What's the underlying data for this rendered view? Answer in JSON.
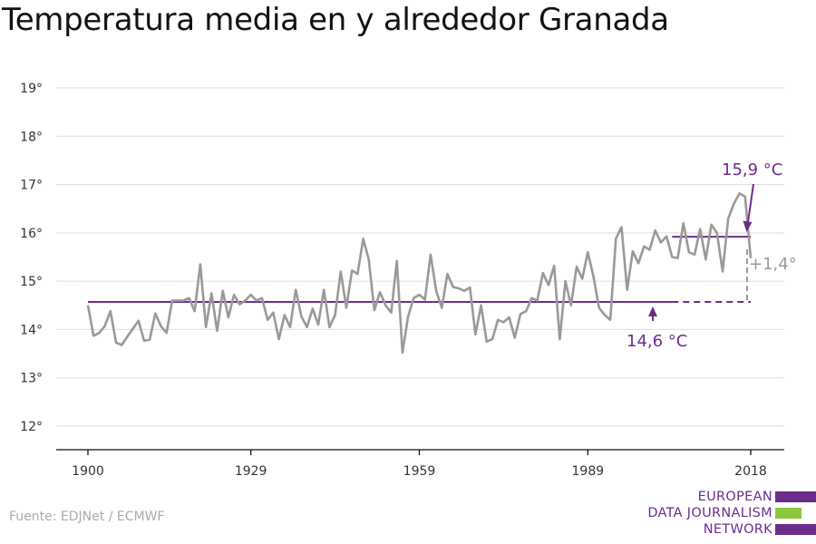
{
  "title": "Temperatura media en y alrededor Granada",
  "source": "Fuente: EDJNet / ECMWF",
  "logo": {
    "lines": [
      "EUROPEAN",
      "DATA JOURNALISM",
      "NETWORK"
    ],
    "colors": [
      "#6b2d8c",
      "#8dc63f",
      "#6b2d8c"
    ]
  },
  "colors": {
    "series": "#999999",
    "baseline": "#6b2d8c",
    "text": "#333333",
    "grid": "#dddddd"
  },
  "chart_data": {
    "type": "line",
    "title": "Temperatura media en y alrededor Granada",
    "xlabel": "",
    "ylabel": "",
    "xlim": [
      1900,
      2020
    ],
    "ylim": [
      11.5,
      19.5
    ],
    "x_ticks": [
      1900,
      1929,
      1959,
      1989,
      2018
    ],
    "y_ticks": [
      12,
      13,
      14,
      15,
      16,
      17,
      18,
      19
    ],
    "y_tick_suffix": "°",
    "grid": "horizontal",
    "series": [
      {
        "start_year": 1900,
        "values": [
          14.5,
          13.87,
          13.93,
          14.07,
          14.38,
          13.73,
          13.68,
          13.85,
          14.02,
          14.18,
          13.77,
          13.79,
          14.33,
          14.07,
          13.93,
          14.6,
          14.6,
          14.6,
          14.65,
          14.38,
          15.35,
          14.05,
          14.75,
          13.97,
          14.8,
          14.25,
          14.72,
          14.52,
          14.6,
          14.72,
          14.6,
          14.65,
          14.2,
          14.35,
          13.8,
          14.3,
          14.05,
          14.82,
          14.27,
          14.05,
          14.43,
          14.1,
          14.82,
          14.05,
          14.3,
          15.2,
          14.45,
          15.22,
          15.15,
          15.88,
          15.45,
          14.4,
          14.77,
          14.5,
          14.35,
          15.42,
          13.52,
          14.27,
          14.65,
          14.72,
          14.62,
          15.55,
          14.8,
          14.45,
          15.15,
          14.88,
          14.85,
          14.8,
          14.87,
          13.9,
          14.5,
          13.75,
          13.8,
          14.2,
          14.15,
          14.25,
          13.83,
          14.32,
          14.38,
          14.65,
          14.6,
          15.17,
          14.92,
          15.32,
          13.8,
          15.0,
          14.5,
          15.3,
          15.05,
          15.6,
          15.1,
          14.45,
          14.3,
          14.2,
          15.88,
          16.12,
          14.82,
          15.62,
          15.37,
          15.72,
          15.65,
          16.05,
          15.8,
          15.93,
          15.5,
          15.48,
          16.2,
          15.6,
          15.55,
          16.08,
          15.45,
          16.17,
          16.0,
          15.2,
          16.3,
          16.6,
          16.82,
          16.75,
          15.48
        ]
      }
    ],
    "baselines": [
      {
        "from": 1900,
        "to": 2004,
        "to_dashed": 2018,
        "value": 14.57
      },
      {
        "from": 2004,
        "to": 2018,
        "value": 15.92
      }
    ],
    "annotations": {
      "recent": "15,9 °C",
      "base": "14,6 °C",
      "diff": "+1,4°"
    }
  }
}
